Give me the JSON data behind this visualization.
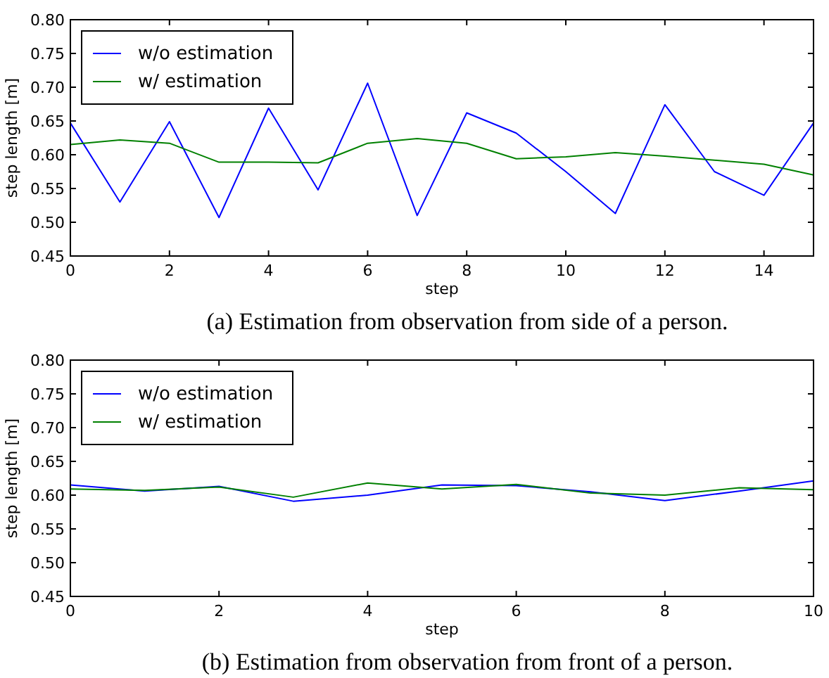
{
  "chart_data": [
    {
      "type": "line",
      "xlabel": "step",
      "ylabel": "step length [m]",
      "annotations": [
        "(a) Estimation from observation from side of a person."
      ],
      "x": [
        0,
        1,
        2,
        3,
        4,
        5,
        6,
        7,
        8,
        9,
        10,
        11,
        12,
        13,
        14,
        15
      ],
      "xlim": [
        0,
        15
      ],
      "xticks": [
        0,
        2,
        4,
        6,
        8,
        10,
        12,
        14
      ],
      "ylim": [
        0.45,
        0.8
      ],
      "yticks": [
        {
          "value": 0.45,
          "label": "0.45"
        },
        {
          "value": 0.5,
          "label": "0.50"
        },
        {
          "value": 0.55,
          "label": "0.55"
        },
        {
          "value": 0.6,
          "label": "0.60"
        },
        {
          "value": 0.65,
          "label": "0.65"
        },
        {
          "value": 0.7,
          "label": "0.70"
        },
        {
          "value": 0.75,
          "label": "0.75"
        },
        {
          "value": 0.8,
          "label": "0.80"
        }
      ],
      "grid": false,
      "legend": "top left",
      "series": [
        {
          "name": "w/o estimation",
          "color": "#0000ff",
          "values": [
            0.647,
            0.53,
            0.649,
            0.507,
            0.669,
            0.548,
            0.706,
            0.51,
            0.662,
            0.632,
            0.575,
            0.513,
            0.674,
            0.575,
            0.54,
            0.647
          ]
        },
        {
          "name": "w/ estimation",
          "color": "#008000",
          "values": [
            0.615,
            0.622,
            0.617,
            0.589,
            0.589,
            0.588,
            0.617,
            0.624,
            0.617,
            0.594,
            0.597,
            0.603,
            0.598,
            0.592,
            0.586,
            0.57
          ]
        }
      ]
    },
    {
      "type": "line",
      "xlabel": "step",
      "ylabel": "step length [m]",
      "annotations": [
        "(b) Estimation from observation from front of a person."
      ],
      "x": [
        0,
        1,
        2,
        3,
        4,
        5,
        6,
        7,
        8,
        9,
        10
      ],
      "xlim": [
        0,
        10
      ],
      "xticks": [
        0,
        2,
        4,
        6,
        8,
        10
      ],
      "ylim": [
        0.45,
        0.8
      ],
      "yticks": [
        {
          "value": 0.45,
          "label": "0.45"
        },
        {
          "value": 0.5,
          "label": "0.50"
        },
        {
          "value": 0.55,
          "label": "0.55"
        },
        {
          "value": 0.6,
          "label": "0.60"
        },
        {
          "value": 0.65,
          "label": "0.65"
        },
        {
          "value": 0.7,
          "label": "0.70"
        },
        {
          "value": 0.75,
          "label": "0.75"
        },
        {
          "value": 0.8,
          "label": "0.80"
        }
      ],
      "grid": false,
      "legend": "top left",
      "series": [
        {
          "name": "w/o estimation",
          "color": "#0000ff",
          "values": [
            0.615,
            0.606,
            0.613,
            0.591,
            0.6,
            0.615,
            0.614,
            0.605,
            0.592,
            0.606,
            0.621
          ]
        },
        {
          "name": "w/ estimation",
          "color": "#008000",
          "values": [
            0.609,
            0.607,
            0.612,
            0.597,
            0.618,
            0.609,
            0.616,
            0.603,
            0.6,
            0.611,
            0.608
          ]
        }
      ]
    }
  ]
}
